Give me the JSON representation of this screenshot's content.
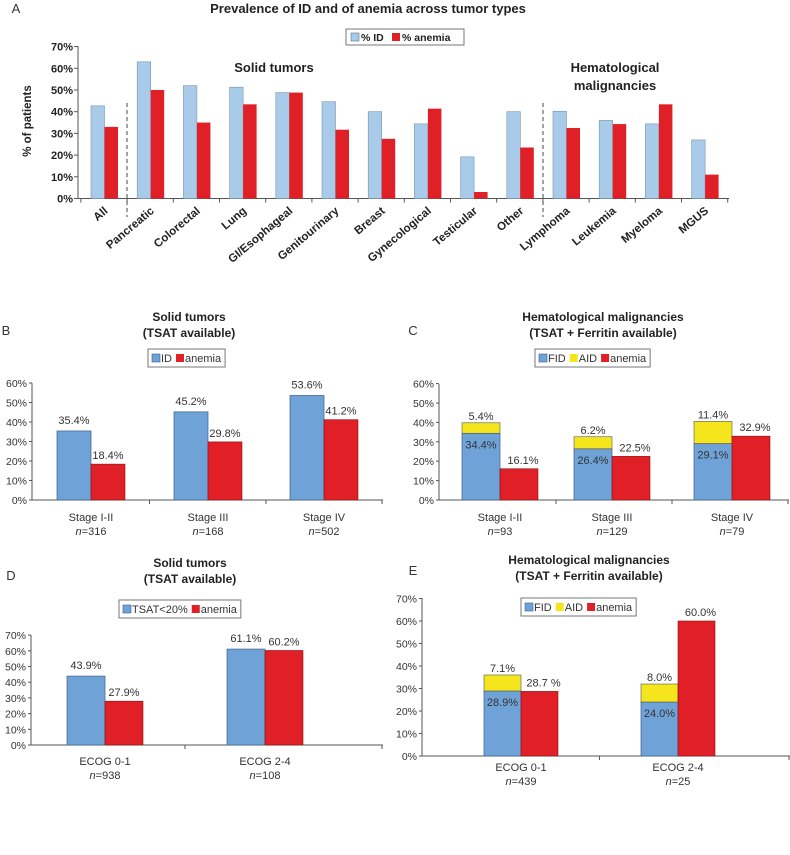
{
  "colors": {
    "id_light": "#a8cbea",
    "id_blue": "#6fa3d8",
    "anemia_red": "#e11f26",
    "aid_yellow": "#f4e51c"
  },
  "chart_data": [
    {
      "panel_label": "A",
      "type": "bar",
      "title": "Prevalence of ID and of anemia across tumor types",
      "ylabel": "% of patients",
      "ylim": [
        0,
        70
      ],
      "y_ticks": [
        "0%",
        "10%",
        "20%",
        "30%",
        "40%",
        "50%",
        "60%",
        "70%"
      ],
      "legend_placement": "top-center",
      "annotations": {
        "solid": "Solid tumors",
        "heme_line1": "Hematological",
        "heme_line2": "malignancies"
      },
      "categories": [
        "All",
        "Pancreatic",
        "Colorectal",
        "Lung",
        "GI/Esophageal",
        "Genitourinary",
        "Breast",
        "Gynecological",
        "Testicular",
        "Other",
        "Lymphoma",
        "Leukemia",
        "Myeloma",
        "MGUS"
      ],
      "series": [
        {
          "name": "% ID",
          "values": [
            42.7,
            63,
            52,
            51.3,
            48.8,
            44.6,
            40,
            34.4,
            19.2,
            40,
            40.2,
            36,
            34.4,
            27
          ]
        },
        {
          "name": "% anemia",
          "values": [
            33,
            50,
            35,
            43.4,
            48.8,
            31.7,
            27.5,
            41.4,
            3,
            23.5,
            32.5,
            34.3,
            43.4,
            11
          ]
        }
      ]
    },
    {
      "panel_label": "B",
      "type": "bar",
      "title_lines": [
        "Solid tumors",
        "(TSAT available)"
      ],
      "ylim": [
        0,
        60
      ],
      "y_ticks": [
        "0%",
        "10%",
        "20%",
        "30%",
        "40%",
        "50%",
        "60%"
      ],
      "categories": [
        "Stage I-II",
        "Stage III",
        "Stage IV"
      ],
      "n_var": "n",
      "n_values": [
        "=316",
        "=168",
        "=502"
      ],
      "series": [
        {
          "name": "ID",
          "values": [
            35.4,
            45.2,
            53.6
          ],
          "labels": [
            "35.4%",
            "45.2%",
            "53.6%"
          ]
        },
        {
          "name": "anemia",
          "values": [
            18.4,
            29.8,
            41.2
          ],
          "labels": [
            "18.4%",
            "29.8%",
            "41.2%"
          ]
        }
      ]
    },
    {
      "panel_label": "C",
      "type": "bar",
      "stacked_first_two": true,
      "title_lines": [
        "Hematological malignancies",
        "(TSAT + Ferritin available)"
      ],
      "ylim": [
        0,
        60
      ],
      "y_ticks": [
        "0%",
        "10%",
        "20%",
        "30%",
        "40%",
        "50%",
        "60%"
      ],
      "categories": [
        "Stage I-II",
        "Stage III",
        "Stage IV"
      ],
      "n_var": "n",
      "n_values": [
        "=93",
        "=129",
        "=79"
      ],
      "series": [
        {
          "name": "FID",
          "values": [
            34.4,
            26.4,
            29.1
          ],
          "labels": [
            "34.4%",
            "26.4%",
            "29.1%"
          ]
        },
        {
          "name": "AID",
          "values": [
            5.4,
            6.2,
            11.4
          ],
          "labels": [
            "5.4%",
            "6.2%",
            "11.4%"
          ]
        },
        {
          "name": "anemia",
          "values": [
            16.1,
            22.5,
            32.9
          ],
          "labels": [
            "16.1%",
            "22.5%",
            "32.9%"
          ]
        }
      ]
    },
    {
      "panel_label": "D",
      "type": "bar",
      "title_lines": [
        "Solid tumors",
        "(TSAT available)"
      ],
      "ylim": [
        0,
        70
      ],
      "y_ticks": [
        "0%",
        "10%",
        "20%",
        "30%",
        "40%",
        "50%",
        "60%",
        "70%"
      ],
      "categories": [
        "ECOG 0-1",
        "ECOG 2-4"
      ],
      "n_var": "n",
      "n_values": [
        "=938",
        "=108"
      ],
      "series": [
        {
          "name": "TSAT<20%",
          "values": [
            43.9,
            61.1
          ],
          "labels": [
            "43.9%",
            "61.1%"
          ]
        },
        {
          "name": "anemia",
          "values": [
            27.9,
            60.2
          ],
          "labels": [
            "27.9%",
            "60.2%"
          ]
        }
      ]
    },
    {
      "panel_label": "E",
      "type": "bar",
      "stacked_first_two": true,
      "title_lines": [
        "Hematological malignancies",
        "(TSAT + Ferritin available)"
      ],
      "ylim": [
        0,
        70
      ],
      "y_ticks": [
        "0%",
        "10%",
        "20%",
        "30%",
        "40%",
        "50%",
        "60%",
        "70%"
      ],
      "categories": [
        "ECOG 0-1",
        "ECOG 2-4"
      ],
      "n_var": "n",
      "n_values": [
        "=439",
        "=25"
      ],
      "series": [
        {
          "name": "FID",
          "values": [
            28.9,
            24.0
          ],
          "labels": [
            "28.9%",
            "24.0%"
          ]
        },
        {
          "name": "AID",
          "values": [
            7.1,
            8.0
          ],
          "labels": [
            "7.1%",
            "8.0%"
          ]
        },
        {
          "name": "anemia",
          "values": [
            28.7,
            60.0
          ],
          "labels": [
            "28.7 %",
            "60.0%"
          ]
        }
      ]
    }
  ]
}
